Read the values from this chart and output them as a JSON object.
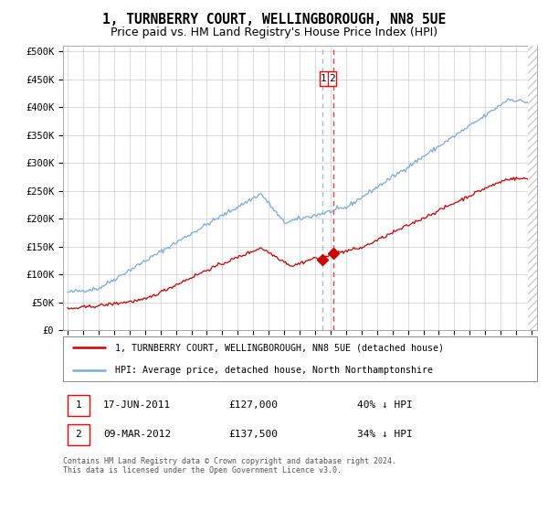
{
  "title": "1, TURNBERRY COURT, WELLINGBOROUGH, NN8 5UE",
  "subtitle": "Price paid vs. HM Land Registry's House Price Index (HPI)",
  "ylabel_ticks": [
    "£0",
    "£50K",
    "£100K",
    "£150K",
    "£200K",
    "£250K",
    "£300K",
    "£350K",
    "£400K",
    "£450K",
    "£500K"
  ],
  "ytick_vals": [
    0,
    50000,
    100000,
    150000,
    200000,
    250000,
    300000,
    350000,
    400000,
    450000,
    500000
  ],
  "x_start_year": 1995,
  "x_end_year": 2025,
  "hpi_color": "#7aaadd",
  "price_color": "#cc0000",
  "vline1_color": "#aabbcc",
  "vline2_color": "#dd4444",
  "marker_color": "#cc0000",
  "sale1_price": 127000,
  "sale1_x": 2011.46,
  "sale2_price": 137500,
  "sale2_x": 2012.19,
  "legend_entry1": "1, TURNBERRY COURT, WELLINGBOROUGH, NN8 5UE (detached house)",
  "legend_entry2": "HPI: Average price, detached house, North Northamptonshire",
  "annotation1_date": "17-JUN-2011",
  "annotation1_price": "£127,000",
  "annotation1_hpi": "40% ↓ HPI",
  "annotation2_date": "09-MAR-2012",
  "annotation2_price": "£137,500",
  "annotation2_hpi": "34% ↓ HPI",
  "footnote": "Contains HM Land Registry data © Crown copyright and database right 2024.\nThis data is licensed under the Open Government Licence v3.0.",
  "bg_color": "#ffffff",
  "grid_color": "#cccccc",
  "title_fontsize": 10.5,
  "subtitle_fontsize": 9,
  "tick_fontsize": 7.5
}
